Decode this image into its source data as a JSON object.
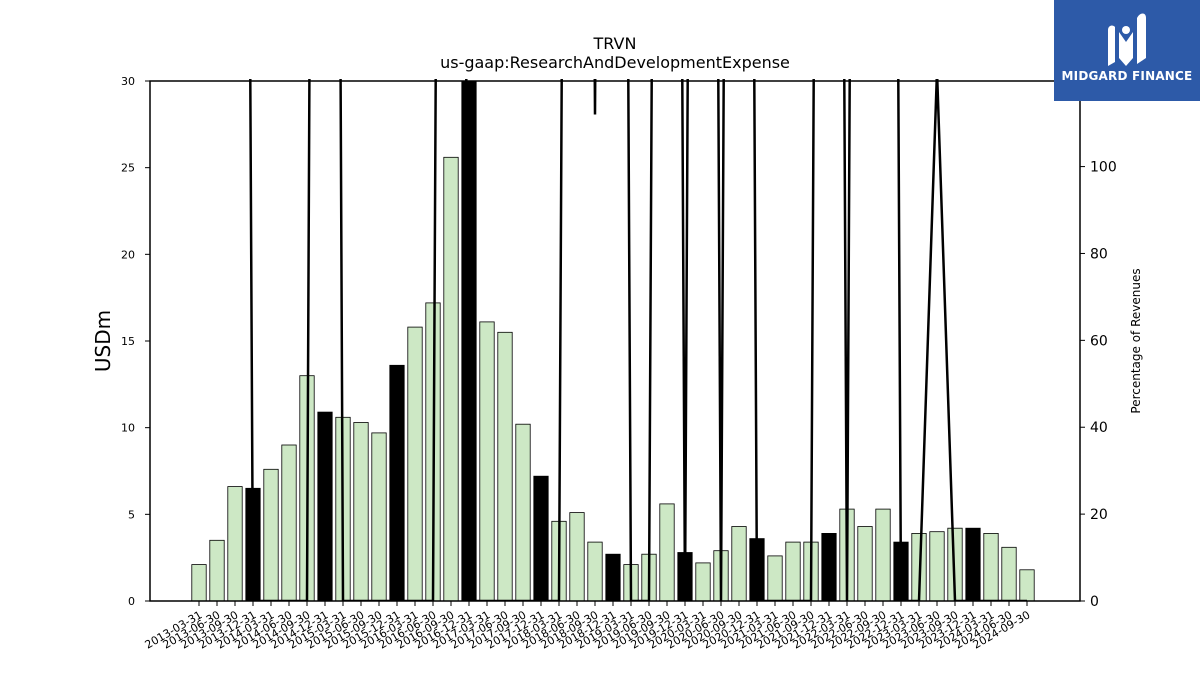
{
  "brand": {
    "name": "MIDGARD FINANCE",
    "bg_color": "#2d5aa8"
  },
  "chart_data": {
    "type": "bar",
    "title": "TRVN",
    "subtitle": "us-gaap:ResearchAndDevelopmentExpense",
    "ylabel": "USDm",
    "y2label": "Percentage of Revenues",
    "ylim": [
      0,
      30
    ],
    "y2lim": [
      0,
      119.7
    ],
    "yticks": [
      0,
      5,
      10,
      15,
      20,
      25,
      30
    ],
    "y2ticks": [
      0,
      20,
      40,
      60,
      80,
      100
    ],
    "categories": [
      "2013-03-31",
      "2013-06-30",
      "2013-09-30",
      "2013-12-31",
      "2014-03-31",
      "2014-06-30",
      "2014-09-30",
      "2014-12-31",
      "2015-03-31",
      "2015-06-30",
      "2015-09-30",
      "2015-12-31",
      "2016-03-31",
      "2016-06-30",
      "2016-09-30",
      "2016-12-31",
      "2017-03-31",
      "2017-06-30",
      "2017-09-30",
      "2017-12-31",
      "2018-03-31",
      "2018-06-30",
      "2018-09-30",
      "2018-12-31",
      "2019-03-31",
      "2019-06-30",
      "2019-09-30",
      "2019-12-31",
      "2020-03-31",
      "2020-06-30",
      "2020-09-30",
      "2020-12-31",
      "2021-03-31",
      "2021-06-30",
      "2021-09-30",
      "2021-12-31",
      "2022-03-31",
      "2022-06-30",
      "2022-09-30",
      "2022-12-31",
      "2023-03-31",
      "2023-06-30",
      "2023-09-30",
      "2023-12-31",
      "2024-03-31",
      "2024-06-30",
      "2024-09-30"
    ],
    "values": [
      2.1,
      3.5,
      6.6,
      6.5,
      7.6,
      9.0,
      13.0,
      10.9,
      10.6,
      10.3,
      9.7,
      13.6,
      15.8,
      17.2,
      25.6,
      30.0,
      16.1,
      15.5,
      10.2,
      7.2,
      4.6,
      5.1,
      3.4,
      2.7,
      2.1,
      2.7,
      5.6,
      2.8,
      2.2,
      2.9,
      4.3,
      3.6,
      2.6,
      3.4,
      3.4,
      3.9,
      5.3,
      4.3,
      5.3,
      3.4,
      3.9,
      4.0,
      4.2,
      4.2,
      3.9,
      3.1,
      1.8
    ],
    "highlight": [
      false,
      false,
      false,
      true,
      false,
      false,
      false,
      true,
      false,
      false,
      false,
      true,
      false,
      false,
      false,
      true,
      false,
      false,
      false,
      true,
      false,
      false,
      false,
      true,
      false,
      false,
      false,
      true,
      false,
      false,
      false,
      true,
      false,
      false,
      false,
      true,
      false,
      false,
      false,
      true,
      false,
      false,
      false,
      true,
      false,
      false,
      false
    ],
    "pct_revenues": [
      null,
      null,
      800,
      0,
      0,
      0,
      0,
      900,
      0,
      0,
      0,
      0,
      0,
      0,
      800,
      0,
      0,
      0,
      0,
      0,
      0,
      800,
      112,
      800,
      0,
      0,
      800,
      0,
      800,
      0,
      800,
      0,
      0,
      0,
      0,
      800,
      0,
      800,
      800,
      0,
      0,
      122,
      0,
      0,
      0,
      0,
      0
    ],
    "colors": {
      "bar": "#cde8c5",
      "highlight": "#000000",
      "line": "#000000"
    },
    "grid": false
  }
}
